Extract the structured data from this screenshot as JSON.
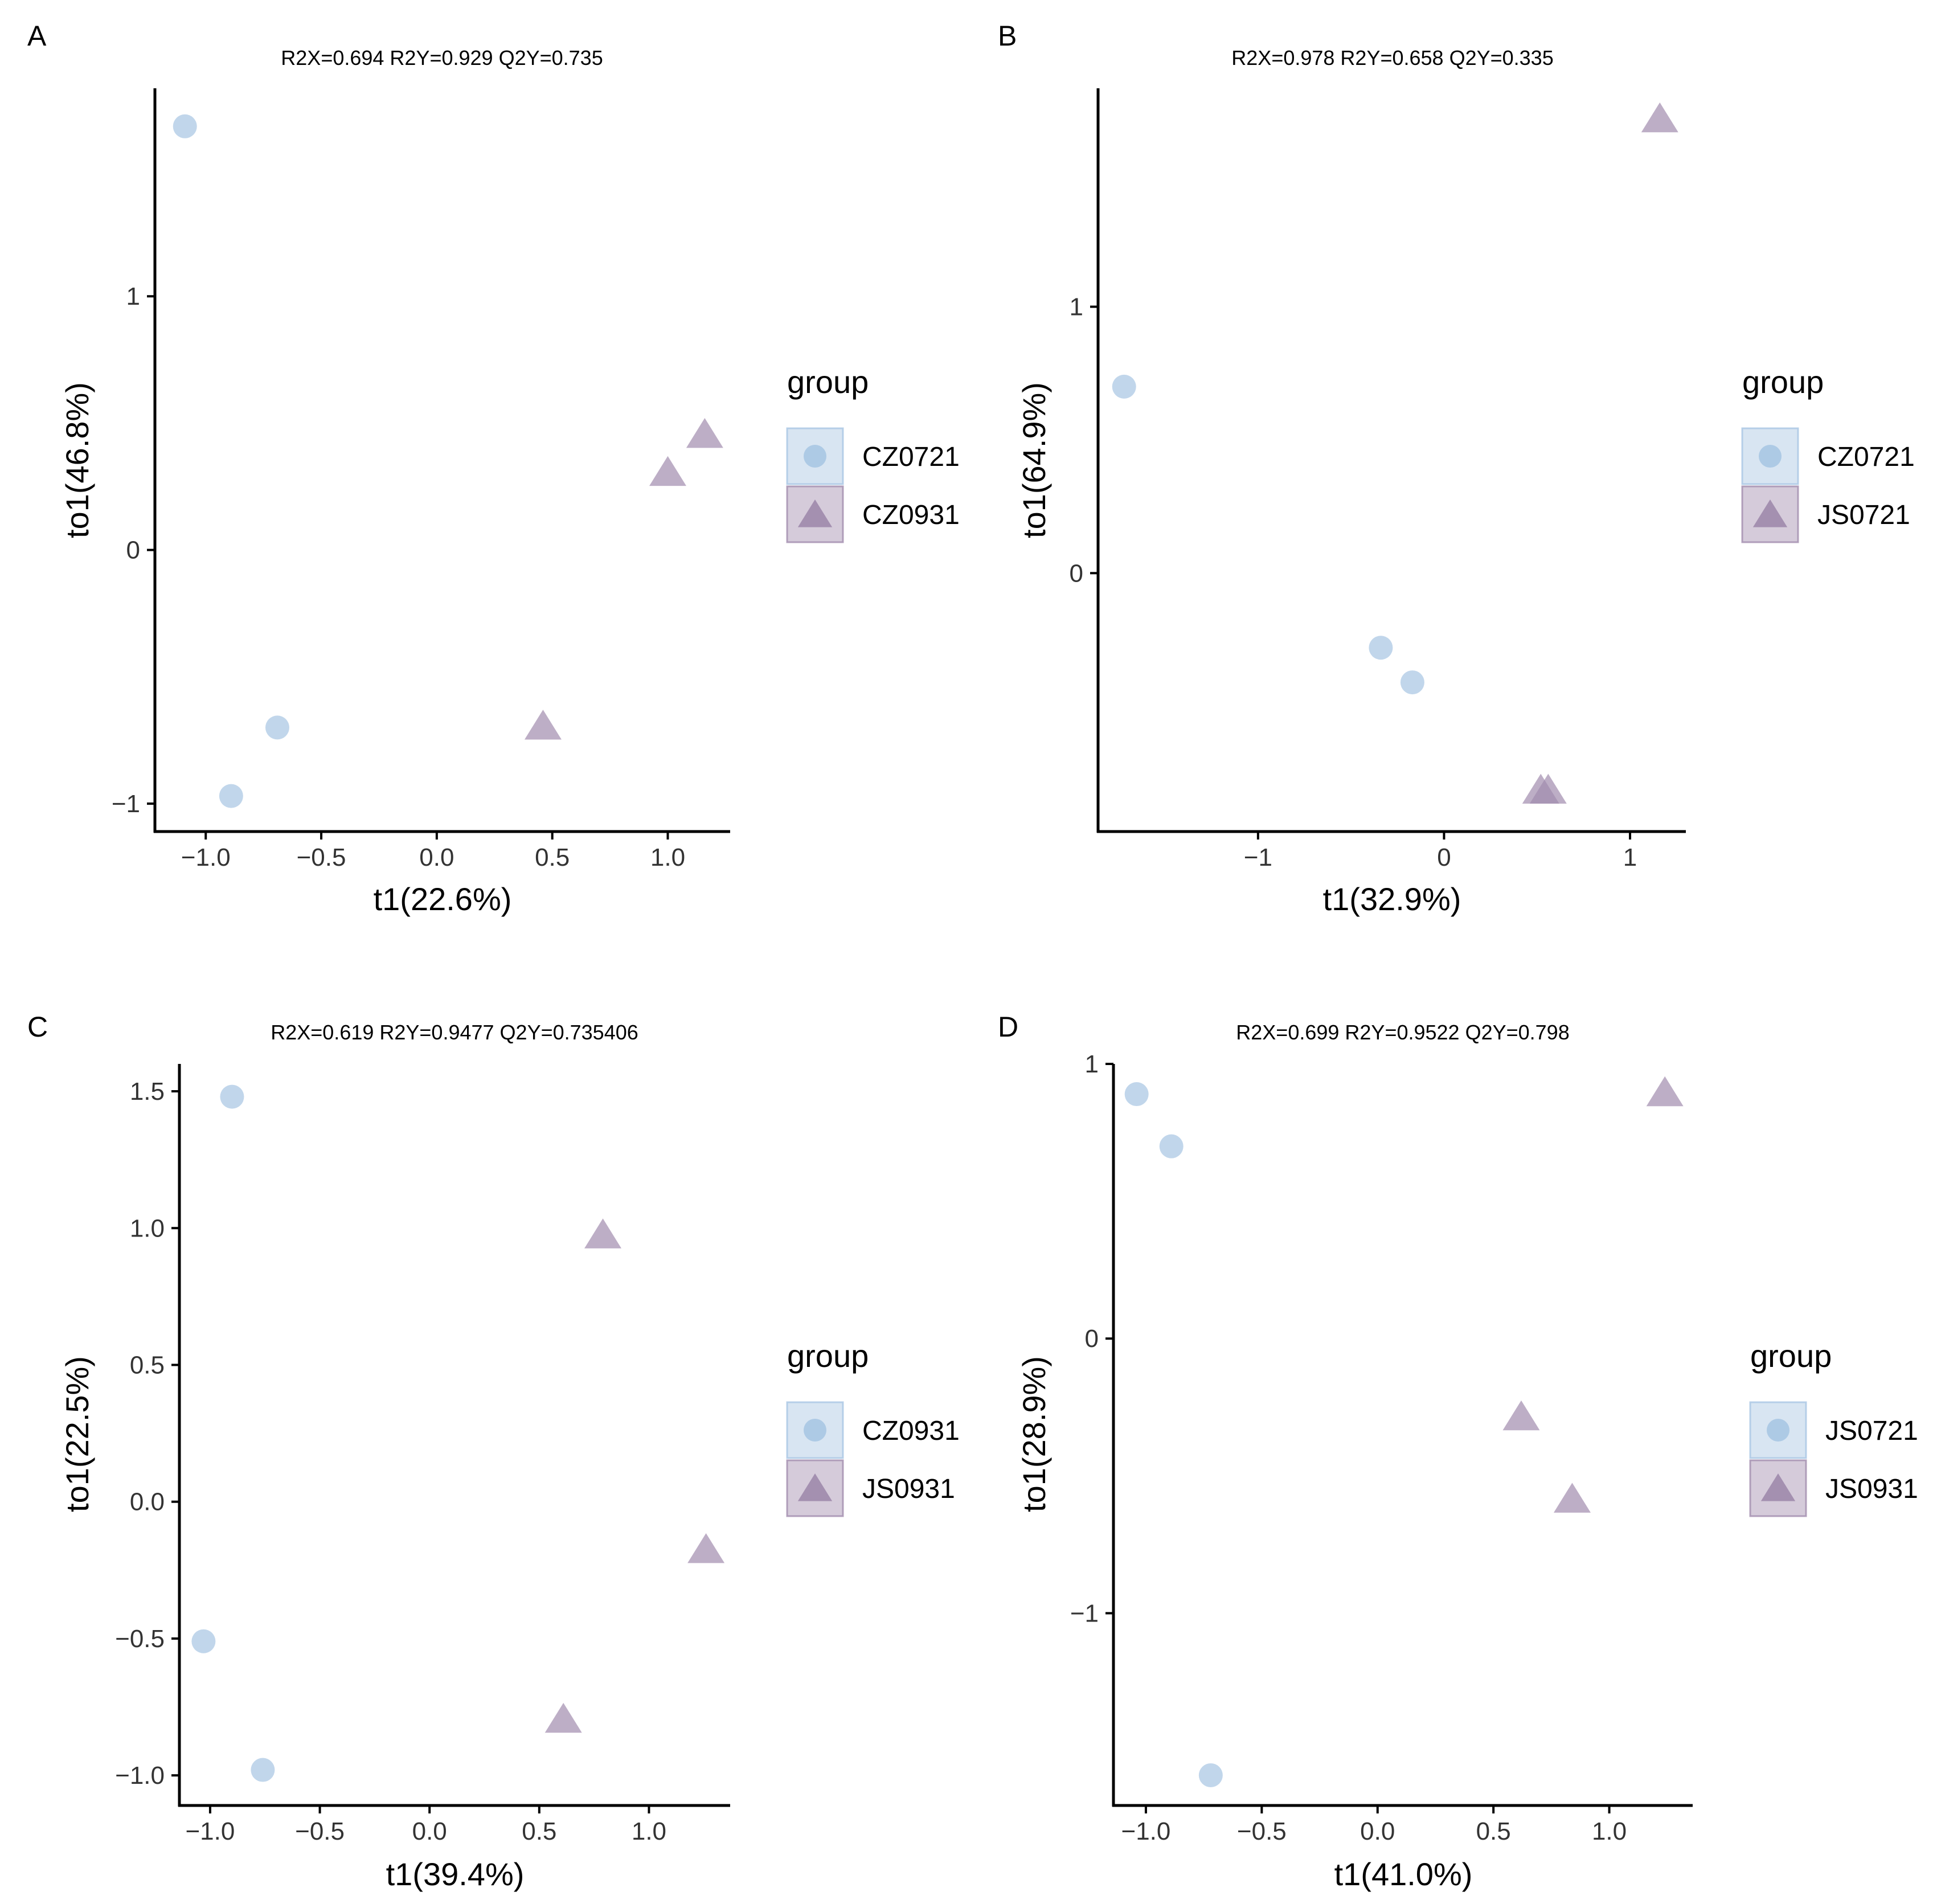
{
  "chart_data": [
    {
      "panel_label": "A",
      "type": "scatter",
      "title": "R2X=0.694   R2Y=0.929   Q2Y=0.735",
      "xlabel": "t1(22.6%)",
      "ylabel": "to1(46.8%)",
      "xlim": [
        -1.22,
        1.27
      ],
      "ylim": [
        -1.11,
        1.82
      ],
      "x_ticks": [
        -1.0,
        -0.5,
        0.0,
        0.5,
        1.0
      ],
      "x_tick_labels": [
        "−1.0",
        "−0.5",
        "0.0",
        "0.5",
        "1.0"
      ],
      "y_ticks": [
        -1,
        0,
        1
      ],
      "y_tick_labels": [
        "−1",
        "0",
        "1"
      ],
      "legend_title": "group",
      "series": [
        {
          "name": "CZ0721",
          "marker": "circle",
          "color": "#a9c6e3",
          "points": [
            [
              -1.09,
              1.67
            ],
            [
              -0.89,
              -0.97
            ],
            [
              -0.69,
              -0.7
            ]
          ]
        },
        {
          "name": "CZ0931",
          "marker": "triangle",
          "color": "#a18cae",
          "points": [
            [
              0.46,
              -0.7
            ],
            [
              1.0,
              0.3
            ],
            [
              1.16,
              0.45
            ]
          ]
        }
      ]
    },
    {
      "panel_label": "B",
      "type": "scatter",
      "title": "R2X=0.978   R2Y=0.658   Q2Y=0.335",
      "xlabel": "t1(32.9%)",
      "ylabel": "to1(64.9%)",
      "xlim": [
        -1.86,
        1.3
      ],
      "ylim": [
        -0.97,
        1.82
      ],
      "x_ticks": [
        -1,
        0,
        1
      ],
      "x_tick_labels": [
        "−1",
        "0",
        "1"
      ],
      "y_ticks": [
        0,
        1
      ],
      "y_tick_labels": [
        "0",
        "1"
      ],
      "legend_title": "group",
      "series": [
        {
          "name": "CZ0721",
          "marker": "circle",
          "color": "#a9c6e3",
          "points": [
            [
              -1.72,
              0.7
            ],
            [
              -0.34,
              -0.28
            ],
            [
              -0.17,
              -0.41
            ]
          ]
        },
        {
          "name": "JS0721",
          "marker": "triangle",
          "color": "#a18cae",
          "points": [
            [
              0.52,
              -0.82
            ],
            [
              0.56,
              -0.82
            ],
            [
              1.16,
              1.7
            ]
          ]
        }
      ]
    },
    {
      "panel_label": "C",
      "type": "scatter",
      "title": "R2X=0.619   R2Y=0.9477   Q2Y=0.735406",
      "xlabel": "t1(39.4%)",
      "ylabel": "to1(22.5%)",
      "xlim": [
        -1.14,
        1.37
      ],
      "ylim": [
        -1.11,
        1.6
      ],
      "x_ticks": [
        -1.0,
        -0.5,
        0.0,
        0.5,
        1.0
      ],
      "x_tick_labels": [
        "−1.0",
        "−0.5",
        "0.0",
        "0.5",
        "1.0"
      ],
      "y_ticks": [
        -1.0,
        -0.5,
        0.0,
        0.5,
        1.0,
        1.5
      ],
      "y_tick_labels": [
        "−1.0",
        "−0.5",
        "0.0",
        "0.5",
        "1.0",
        "1.5"
      ],
      "legend_title": "group",
      "series": [
        {
          "name": "CZ0931",
          "marker": "circle",
          "color": "#a9c6e3",
          "points": [
            [
              -0.9,
              1.48
            ],
            [
              -1.03,
              -0.51
            ],
            [
              -0.76,
              -0.98
            ]
          ]
        },
        {
          "name": "JS0931",
          "marker": "triangle",
          "color": "#a18cae",
          "points": [
            [
              0.79,
              0.97
            ],
            [
              1.26,
              -0.18
            ],
            [
              0.61,
              -0.8
            ]
          ]
        }
      ]
    },
    {
      "panel_label": "D",
      "type": "scatter",
      "title": "R2X=0.699   R2Y=0.9522   Q2Y=0.798",
      "xlabel": "t1(41.0%)",
      "ylabel": "to1(28.9%)",
      "xlim": [
        -1.14,
        1.36
      ],
      "ylim": [
        -1.7,
        1.0
      ],
      "x_ticks": [
        -1.0,
        -0.5,
        0.0,
        0.5,
        1.0
      ],
      "x_tick_labels": [
        "−1.0",
        "−0.5",
        "0.0",
        "0.5",
        "1.0"
      ],
      "y_ticks": [
        -1,
        0,
        1
      ],
      "y_tick_labels": [
        "−1",
        "0",
        "1"
      ],
      "legend_title": "group",
      "series": [
        {
          "name": "JS0721",
          "marker": "circle",
          "color": "#a9c6e3",
          "points": [
            [
              -1.04,
              0.89
            ],
            [
              -0.89,
              0.7
            ],
            [
              -0.72,
              -1.59
            ]
          ]
        },
        {
          "name": "JS0931",
          "marker": "triangle",
          "color": "#a18cae",
          "points": [
            [
              0.62,
              -0.29
            ],
            [
              0.84,
              -0.59
            ],
            [
              1.24,
              0.89
            ]
          ]
        }
      ]
    }
  ]
}
